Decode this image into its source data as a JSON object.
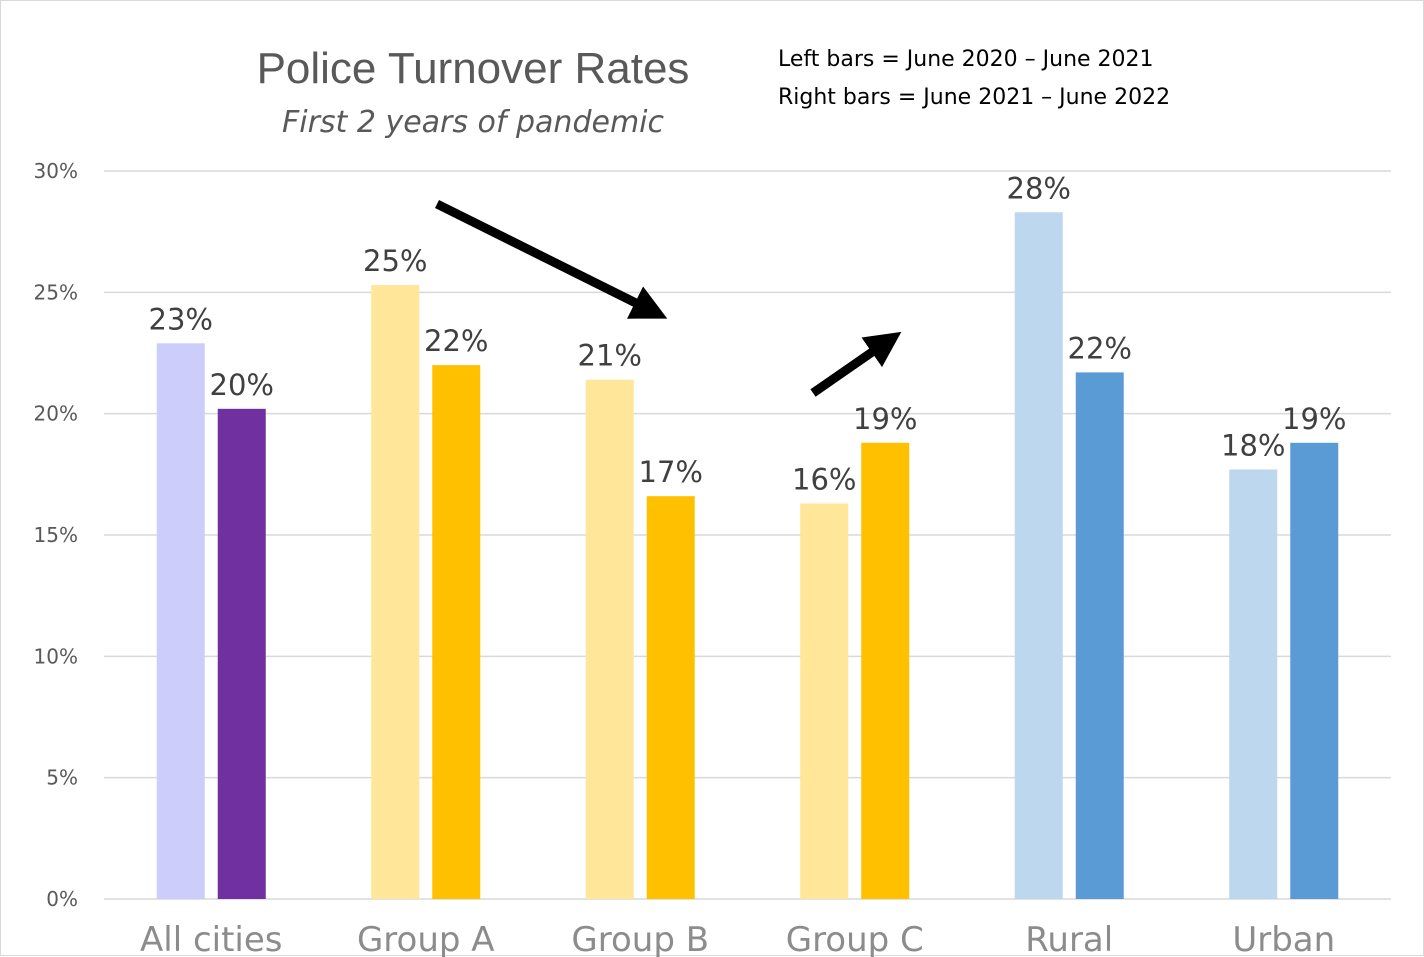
{
  "chart_data": {
    "type": "bar",
    "title": "Police Turnover Rates",
    "subtitle": "First 2 years of pandemic",
    "annotations": [
      "Left bars = June 2020 – June 2021",
      "Right bars = June 2021 – June 2022"
    ],
    "categories": [
      "All cities",
      "Group A",
      "Group B",
      "Group C",
      "Rural",
      "Urban"
    ],
    "series": [
      {
        "values": [
          22.9,
          25.3,
          21.4,
          16.3,
          28.3,
          17.7
        ],
        "labels": [
          "23%",
          "25%",
          "21%",
          "16%",
          "28%",
          "18%"
        ]
      },
      {
        "values": [
          20.2,
          22.0,
          16.6,
          18.8,
          21.7,
          18.8
        ],
        "labels": [
          "20%",
          "22%",
          "17%",
          "19%",
          "22%",
          "19%"
        ]
      }
    ],
    "bar_colors": [
      [
        "#cccdfb",
        "#7030a0"
      ],
      [
        "#ffe699",
        "#ffc000"
      ],
      [
        "#ffe699",
        "#ffc000"
      ],
      [
        "#ffe699",
        "#ffc000"
      ],
      [
        "#bdd7ee",
        "#5b9bd5"
      ],
      [
        "#bdd7ee",
        "#5b9bd5"
      ]
    ],
    "yticks": [
      "0%",
      "5%",
      "10%",
      "15%",
      "20%",
      "25%",
      "30%"
    ],
    "ylim": [
      0,
      30
    ],
    "ylabel": "",
    "xlabel": "",
    "grid": true,
    "arrows": [
      "down-right from Group A toward Group B",
      "up-right from Group C"
    ]
  }
}
